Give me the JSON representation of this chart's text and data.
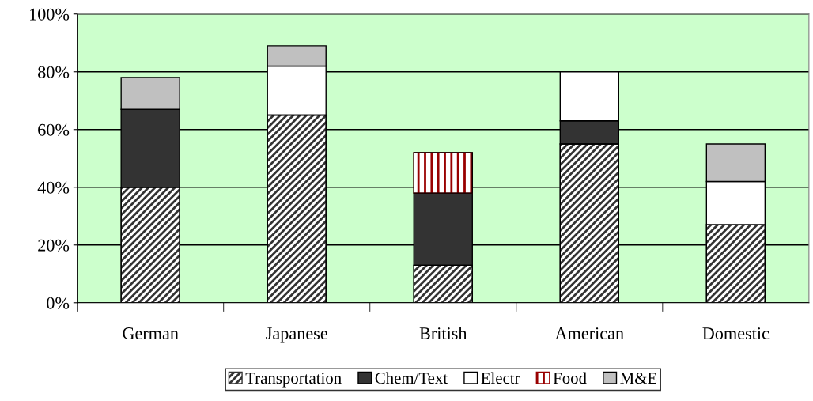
{
  "chart_data": {
    "type": "bar",
    "stacked": true,
    "categories": [
      "German",
      "Japanese",
      "British",
      "American",
      "Domestic"
    ],
    "series": [
      {
        "name": "Transportation",
        "color": "#333333",
        "values": [
          40,
          65,
          13,
          55,
          27
        ]
      },
      {
        "name": "Chem/Text",
        "color": "#333333",
        "values": [
          27,
          null,
          25,
          8,
          null
        ]
      },
      {
        "name": "Electr",
        "color": "#ffffff",
        "values": [
          null,
          17,
          null,
          17,
          15
        ]
      },
      {
        "name": "Food",
        "color": "#990000",
        "values": [
          null,
          null,
          14,
          null,
          null
        ]
      },
      {
        "name": "M&E",
        "color": "#c0c0c0",
        "values": [
          11,
          7,
          null,
          null,
          13
        ]
      }
    ],
    "ylim": [
      0,
      100
    ],
    "yticks": [
      {
        "value": 0,
        "label": "0%"
      },
      {
        "value": 20,
        "label": "20%"
      },
      {
        "value": 40,
        "label": "40%"
      },
      {
        "value": 60,
        "label": "60%"
      },
      {
        "value": 80,
        "label": "80%"
      },
      {
        "value": 100,
        "label": "100%"
      }
    ],
    "grid": "y",
    "legend": "bottom"
  }
}
